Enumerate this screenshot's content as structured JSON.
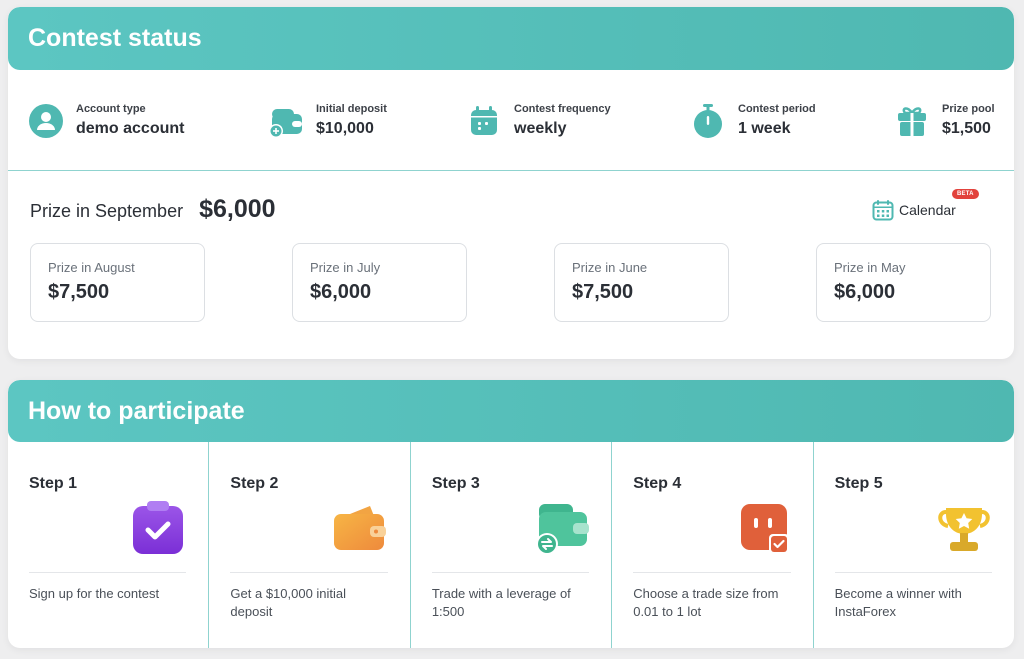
{
  "contest": {
    "title": "Contest status",
    "info": [
      {
        "label": "Account type",
        "value": "demo account",
        "icon": "user-icon"
      },
      {
        "label": "Initial deposit",
        "value": "$10,000",
        "icon": "wallet-plus-icon"
      },
      {
        "label": "Contest frequency",
        "value": "weekly",
        "icon": "calendar-icon"
      },
      {
        "label": "Contest period",
        "value": "1 week",
        "icon": "stopwatch-icon"
      },
      {
        "label": "Prize pool",
        "value": "$1,500",
        "icon": "gift-icon"
      }
    ],
    "current_prize_label": "Prize in September",
    "current_prize_amount": "$6,000",
    "calendar_label": "Calendar",
    "beta_badge": "BETA",
    "past_prizes": [
      {
        "label": "Prize in August",
        "value": "$7,500"
      },
      {
        "label": "Prize in July",
        "value": "$6,000"
      },
      {
        "label": "Prize in June",
        "value": "$7,500"
      },
      {
        "label": "Prize in May",
        "value": "$6,000"
      }
    ]
  },
  "participate": {
    "title": "How to participate",
    "steps": [
      {
        "title": "Step 1",
        "text": "Sign up for the contest",
        "icon": "clipboard-check-icon"
      },
      {
        "title": "Step 2",
        "text": "Get a $10,000 initial deposit",
        "icon": "wallet-icon"
      },
      {
        "title": "Step 3",
        "text": "Trade with a leverage of 1:500",
        "icon": "wallet-exchange-icon"
      },
      {
        "title": "Step 4",
        "text": "Choose a trade size from 0.01 to 1 lot",
        "icon": "lot-checkbox-icon"
      },
      {
        "title": "Step 5",
        "text": "Become a winner with InstaForex",
        "icon": "trophy-icon"
      }
    ]
  },
  "colors": {
    "accent": "#4fb8b1",
    "beta": "#e2423c"
  }
}
